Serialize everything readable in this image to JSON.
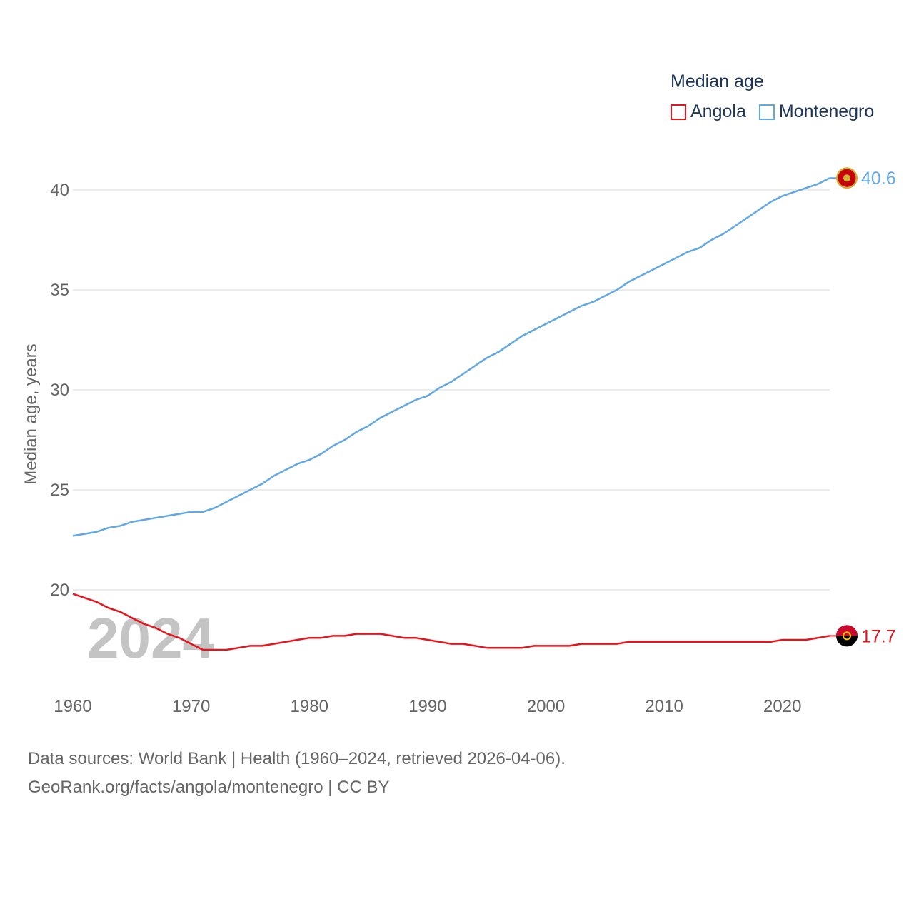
{
  "legend": {
    "title": "Median age",
    "angola": "Angola",
    "montenegro": "Montenegro"
  },
  "colors": {
    "angola": "#e8141c",
    "montenegro": "#62a8e5",
    "grid": "#e6e6e6",
    "text": "#666666",
    "watermark": "#c4c4c4"
  },
  "footer": {
    "line1": "Data sources: World Bank | Health (1960–2024, retrieved 2026-04-06).",
    "line2": "GeoRank.org/facts/angola/montenegro | CC BY"
  },
  "chart_data": {
    "type": "line",
    "title": "Median age",
    "xlabel": "",
    "ylabel": "Median age, years",
    "xlim": [
      1960,
      2024
    ],
    "ylim": [
      15,
      42
    ],
    "x_ticks": [
      1960,
      1970,
      1980,
      1990,
      2000,
      2010,
      2020
    ],
    "y_ticks": [
      20,
      25,
      30,
      35,
      40
    ],
    "year_watermark": "2024",
    "grid": true,
    "legend_position": "top-right",
    "x": [
      1960,
      1961,
      1962,
      1963,
      1964,
      1965,
      1966,
      1967,
      1968,
      1969,
      1970,
      1971,
      1972,
      1973,
      1974,
      1975,
      1976,
      1977,
      1978,
      1979,
      1980,
      1981,
      1982,
      1983,
      1984,
      1985,
      1986,
      1987,
      1988,
      1989,
      1990,
      1991,
      1992,
      1993,
      1994,
      1995,
      1996,
      1997,
      1998,
      1999,
      2000,
      2001,
      2002,
      2003,
      2004,
      2005,
      2006,
      2007,
      2008,
      2009,
      2010,
      2011,
      2012,
      2013,
      2014,
      2015,
      2016,
      2017,
      2018,
      2019,
      2020,
      2021,
      2022,
      2023,
      2024
    ],
    "series": [
      {
        "name": "Montenegro",
        "end_label": "40.6",
        "values": [
          22.7,
          22.8,
          22.9,
          23.1,
          23.2,
          23.4,
          23.5,
          23.6,
          23.7,
          23.8,
          23.9,
          23.9,
          24.1,
          24.4,
          24.7,
          25.0,
          25.3,
          25.7,
          26.0,
          26.3,
          26.5,
          26.8,
          27.2,
          27.5,
          27.9,
          28.2,
          28.6,
          28.9,
          29.2,
          29.5,
          29.7,
          30.1,
          30.4,
          30.8,
          31.2,
          31.6,
          31.9,
          32.3,
          32.7,
          33.0,
          33.3,
          33.6,
          33.9,
          34.2,
          34.4,
          34.7,
          35.0,
          35.4,
          35.7,
          36.0,
          36.3,
          36.6,
          36.9,
          37.1,
          37.5,
          37.8,
          38.2,
          38.6,
          39.0,
          39.4,
          39.7,
          39.9,
          40.1,
          40.3,
          40.6
        ]
      },
      {
        "name": "Angola",
        "end_label": "17.7",
        "values": [
          19.8,
          19.6,
          19.4,
          19.1,
          18.9,
          18.6,
          18.3,
          18.1,
          17.8,
          17.6,
          17.3,
          17.0,
          17.0,
          17.0,
          17.1,
          17.2,
          17.2,
          17.3,
          17.4,
          17.5,
          17.6,
          17.6,
          17.7,
          17.7,
          17.8,
          17.8,
          17.8,
          17.7,
          17.6,
          17.6,
          17.5,
          17.4,
          17.3,
          17.3,
          17.2,
          17.1,
          17.1,
          17.1,
          17.1,
          17.2,
          17.2,
          17.2,
          17.2,
          17.3,
          17.3,
          17.3,
          17.3,
          17.4,
          17.4,
          17.4,
          17.4,
          17.4,
          17.4,
          17.4,
          17.4,
          17.4,
          17.4,
          17.4,
          17.4,
          17.4,
          17.5,
          17.5,
          17.5,
          17.6,
          17.7
        ]
      }
    ]
  }
}
